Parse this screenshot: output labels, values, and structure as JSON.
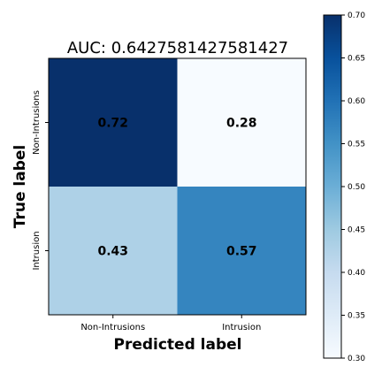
{
  "chart_data": {
    "type": "heatmap",
    "title": "AUC: 0.6427581427581427",
    "xlabel": "Predicted label",
    "ylabel": "True label",
    "x_categories": [
      "Non-Intrusions",
      "Intrusion"
    ],
    "y_categories": [
      "Non-Intrusions",
      "Intrusion"
    ],
    "values": [
      [
        0.72,
        0.28
      ],
      [
        0.43,
        0.57
      ]
    ],
    "value_labels": [
      [
        "0.72",
        "0.28"
      ],
      [
        "0.43",
        "0.57"
      ]
    ],
    "colormap": "Blues",
    "colorbar": {
      "range": [
        0.3,
        0.7
      ],
      "ticks": [
        0.3,
        0.35,
        0.4,
        0.45,
        0.5,
        0.55,
        0.6,
        0.65,
        0.7
      ],
      "tick_labels": [
        "0.30",
        "0.35",
        "0.40",
        "0.45",
        "0.50",
        "0.55",
        "0.60",
        "0.65",
        "0.70"
      ]
    },
    "grid": false
  }
}
